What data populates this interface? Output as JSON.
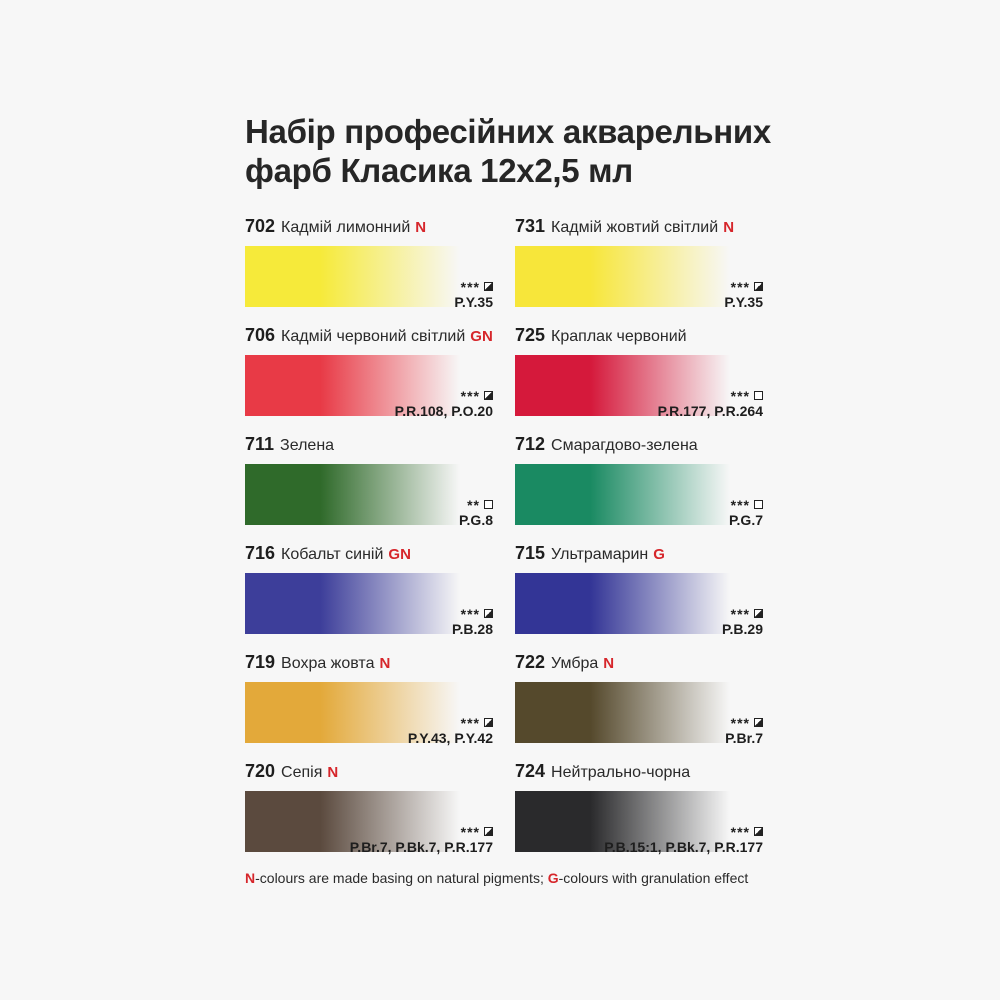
{
  "title_line1": "Набір професійних акварельних",
  "title_line2": "фарб Класика 12х2,5 мл",
  "paints": [
    {
      "code": "702",
      "name": "Кадмій лимонний",
      "flag": "N",
      "rating": "***",
      "lightfastness": "half",
      "pigments": "P.Y.35",
      "color": "#f6ea3a"
    },
    {
      "code": "731",
      "name": "Кадмій жовтий світлий",
      "flag": "N",
      "rating": "***",
      "lightfastness": "half",
      "pigments": "P.Y.35",
      "color": "#f7e63a"
    },
    {
      "code": "706",
      "name": "Кадмій червоний світлий",
      "flag": "GN",
      "rating": "***",
      "lightfastness": "half",
      "pigments": "P.R.108, P.O.20",
      "color": "#e83a46"
    },
    {
      "code": "725",
      "name": "Краплак червоний",
      "flag": "",
      "rating": "***",
      "lightfastness": "empty",
      "pigments": "P.R.177, P.R.264",
      "color": "#d5193b"
    },
    {
      "code": "711",
      "name": "Зелена",
      "flag": "",
      "rating": "**",
      "lightfastness": "empty",
      "pigments": "P.G.8",
      "color": "#2f6a2a"
    },
    {
      "code": "712",
      "name": "Смарагдово-зелена",
      "flag": "",
      "rating": "***",
      "lightfastness": "empty",
      "pigments": "P.G.7",
      "color": "#1a8a62"
    },
    {
      "code": "716",
      "name": "Кобальт синій",
      "flag": "GN",
      "rating": "***",
      "lightfastness": "half",
      "pigments": "P.B.28",
      "color": "#3d3e9a"
    },
    {
      "code": "715",
      "name": "Ультрамарин",
      "flag": "G",
      "rating": "***",
      "lightfastness": "half",
      "pigments": "P.B.29",
      "color": "#333596"
    },
    {
      "code": "719",
      "name": "Вохра жовта",
      "flag": "N",
      "rating": "***",
      "lightfastness": "half",
      "pigments": "P.Y.43, P.Y.42",
      "color": "#e3a93a"
    },
    {
      "code": "722",
      "name": "Умбра",
      "flag": "N",
      "rating": "***",
      "lightfastness": "half",
      "pigments": "P.Br.7",
      "color": "#55492c"
    },
    {
      "code": "720",
      "name": "Сепія",
      "flag": "N",
      "rating": "***",
      "lightfastness": "half",
      "pigments": "P.Br.7, P.Bk.7, P.R.177",
      "color": "#5b4a3e"
    },
    {
      "code": "724",
      "name": "Нейтрально-чорна",
      "flag": "",
      "rating": "***",
      "lightfastness": "half",
      "pigments": "P.B.15:1, P.Bk.7, P.R.177",
      "color": "#2a2a2c"
    }
  ],
  "footnote": {
    "n_letter": "N",
    "n_text": "-colours are made basing on natural pigments; ",
    "g_letter": "G",
    "g_text": "-colours with granulation effect"
  },
  "accent_color": "#d6262b"
}
